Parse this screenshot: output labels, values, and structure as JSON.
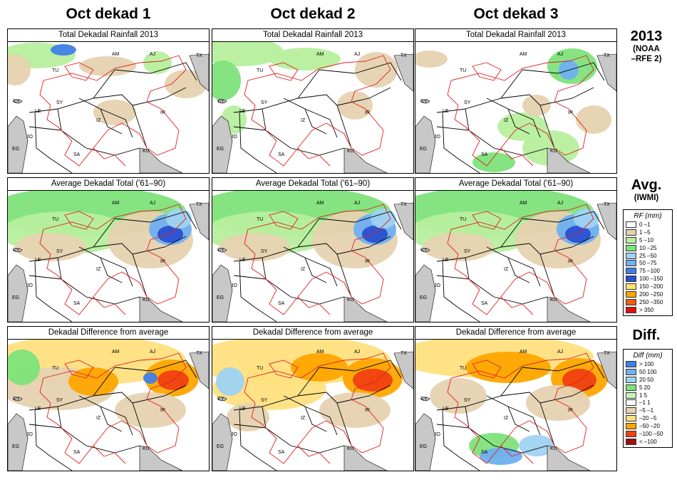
{
  "columns": [
    "Oct dekad 1",
    "Oct dekad 2",
    "Oct dekad 3"
  ],
  "rows": [
    {
      "panel_title": "Total Dekadal Rainfall 2013",
      "side_title": "2013",
      "side_subtitle_1": "(NOAA",
      "side_subtitle_2": "–RFE 2)"
    },
    {
      "panel_title": "Average Dekadal Total ('61–90)",
      "side_title": "Avg.",
      "side_subtitle_1": "(IWMI)",
      "side_subtitle_2": ""
    },
    {
      "panel_title": "Dekadal Difference from average",
      "side_title": "Diff.",
      "side_subtitle_1": "",
      "side_subtitle_2": ""
    }
  ],
  "country_labels": [
    "AM",
    "AJ",
    "TX",
    "TU",
    "SY",
    "IR",
    "CY",
    "LE",
    "JO",
    "IZ",
    "EG",
    "SA",
    "KU"
  ],
  "rf_legend": {
    "title": "RF (mm)",
    "entries": [
      {
        "label": "0 –1",
        "color": "#ffffff"
      },
      {
        "label": "1 –5",
        "color": "#e6d2b0"
      },
      {
        "label": "5 –10",
        "color": "#b7ef9e"
      },
      {
        "label": "10 –25",
        "color": "#7ee37a"
      },
      {
        "label": "25 –50",
        "color": "#9fd3f2"
      },
      {
        "label": "50 –75",
        "color": "#6fb0f0"
      },
      {
        "label": "75 –100",
        "color": "#3f7fe8"
      },
      {
        "label": "100 –150",
        "color": "#2a4fd0"
      },
      {
        "label": "150 –200",
        "color": "#ffe46a"
      },
      {
        "label": "200 –250",
        "color": "#ffa500"
      },
      {
        "label": "250 –350",
        "color": "#f06010"
      },
      {
        "label": "> 350",
        "color": "#e01010"
      }
    ]
  },
  "diff_legend": {
    "title": "Diff (mm)",
    "entries": [
      {
        "label": "> 100",
        "color": "#3f7fe8"
      },
      {
        "label": "50  100",
        "color": "#6fb0f0"
      },
      {
        "label": "20  50",
        "color": "#9fd3f2"
      },
      {
        "label": "5  20",
        "color": "#7ee37a"
      },
      {
        "label": "1  5",
        "color": "#c8f5b5"
      },
      {
        "label": "–1  1",
        "color": "#ffffff"
      },
      {
        "label": "–5  –1",
        "color": "#e6d2b0"
      },
      {
        "label": "–20  –5",
        "color": "#ffe080"
      },
      {
        "label": "–50  –20",
        "color": "#ffa500"
      },
      {
        "label": "–100  –50",
        "color": "#f04010"
      },
      {
        "label": "< –100",
        "color": "#a01010"
      }
    ]
  },
  "colors": {
    "border_red": "#e02020",
    "border_black": "#000000",
    "sea_gray": "#c8c8c8"
  }
}
